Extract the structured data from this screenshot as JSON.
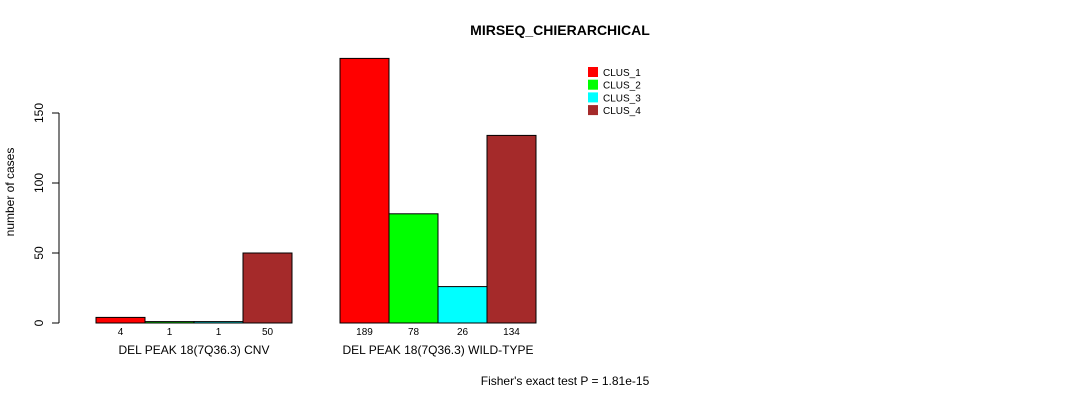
{
  "chart_data": {
    "type": "bar",
    "title": "MIRSEQ_CHIERARCHICAL",
    "ylabel": "number of cases",
    "xlabel": "",
    "ylim": [
      0,
      190
    ],
    "yticks": [
      0,
      50,
      100,
      150
    ],
    "groups": [
      "DEL PEAK 18(7Q36.3) CNV",
      "DEL PEAK 18(7Q36.3) WILD-TYPE"
    ],
    "series": [
      {
        "name": "CLUS_1",
        "color": "#FF0000",
        "values": [
          4,
          189
        ]
      },
      {
        "name": "CLUS_2",
        "color": "#00FF00",
        "values": [
          1,
          78
        ]
      },
      {
        "name": "CLUS_3",
        "color": "#00FFFF",
        "values": [
          1,
          26
        ]
      },
      {
        "name": "CLUS_4",
        "color": "#A52A2A",
        "values": [
          50,
          134
        ]
      }
    ],
    "legend_position": "top-right",
    "annotation": "Fisher's exact test P = 1.81e-15"
  }
}
